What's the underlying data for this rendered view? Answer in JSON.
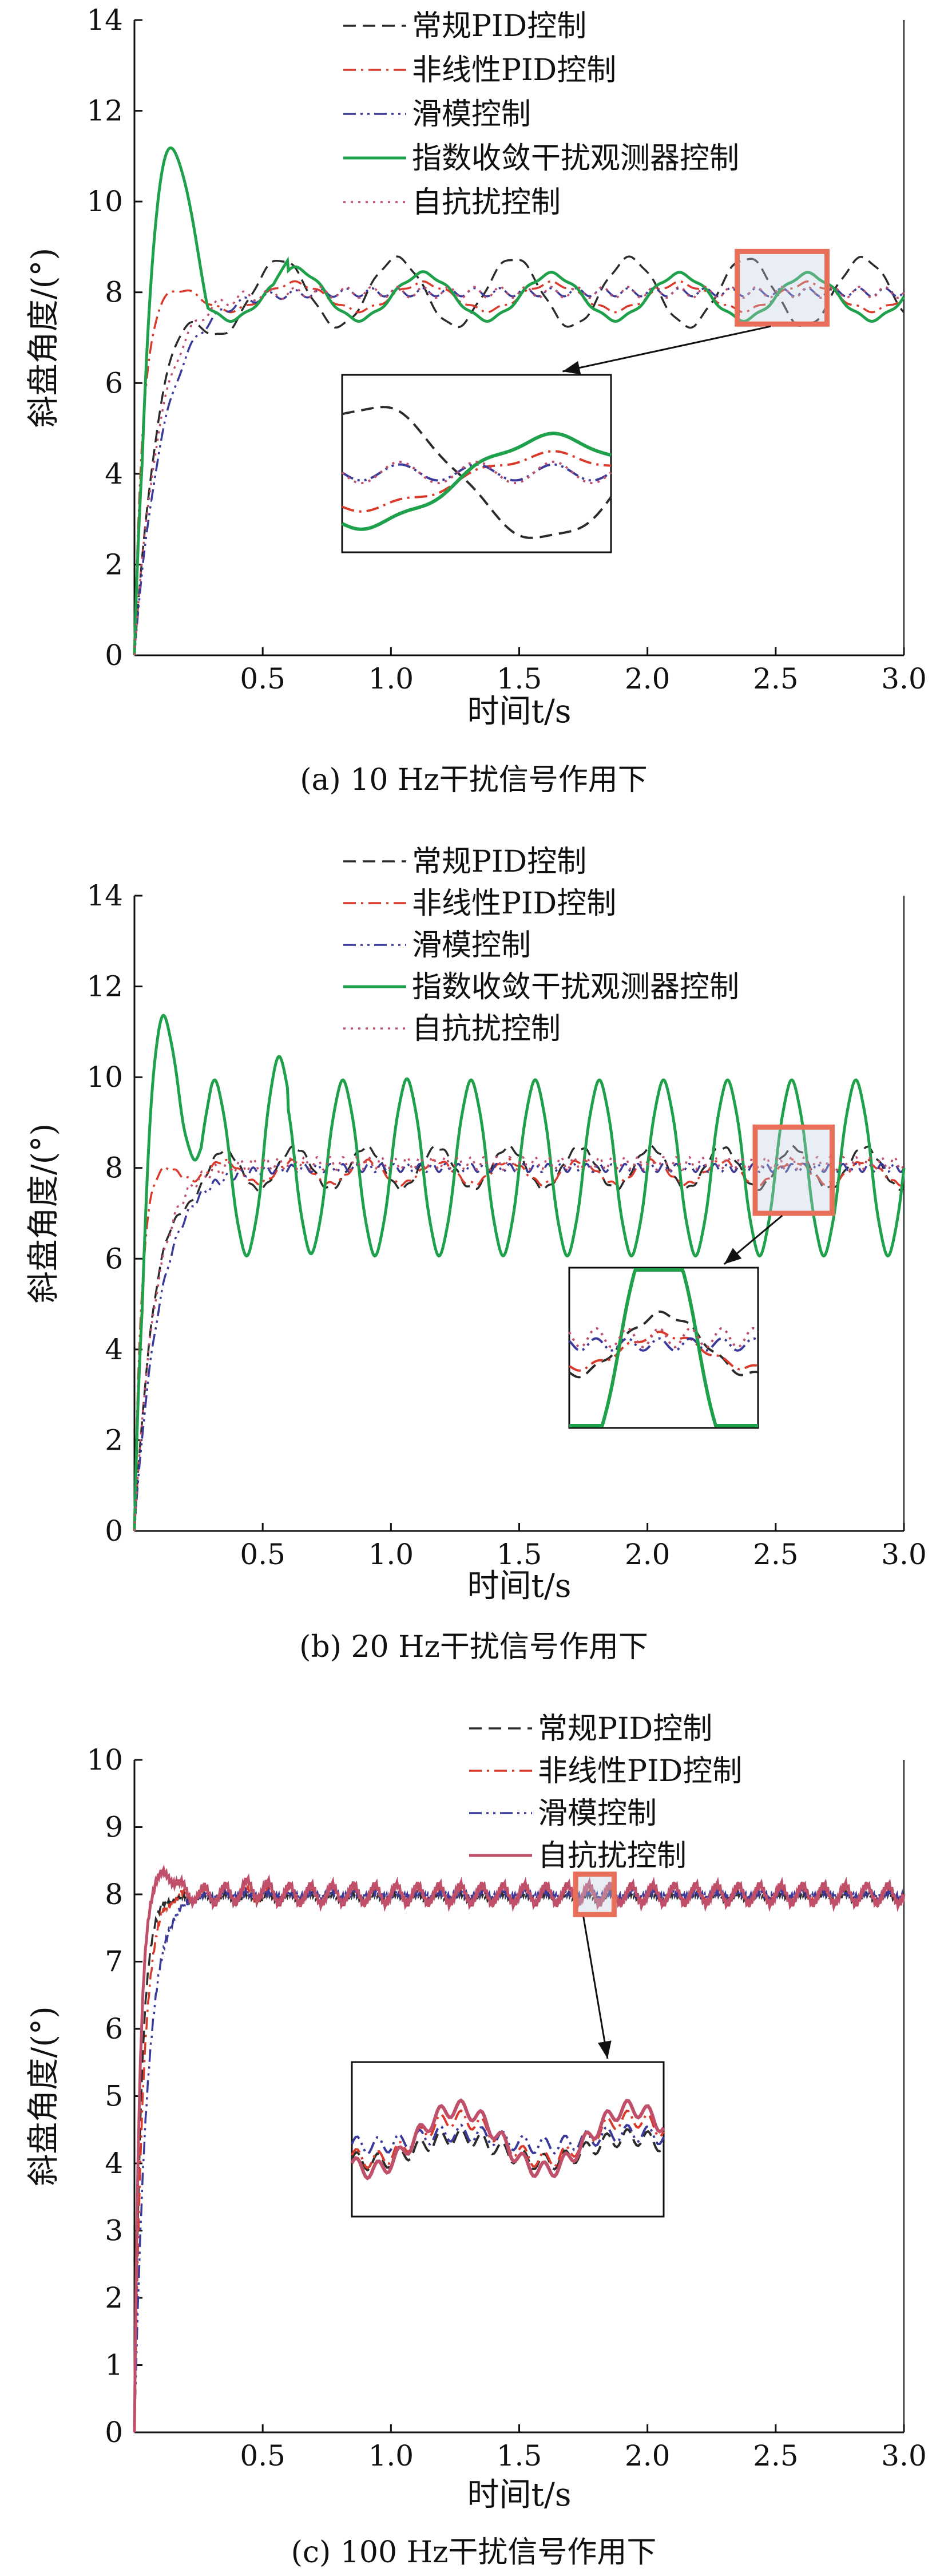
{
  "colors": {
    "常规PID控制": "#2b2b2b",
    "非线性PID控制": "#d93a2b",
    "滑模控制": "#3a3a9a",
    "指数收敛干扰观测器控制": "#1fa04a",
    "自抗扰控制": "#c0506a",
    "highlight": "#e8705a"
  },
  "chart_data": [
    {
      "type": "line",
      "caption": "(a)  10 Hz干扰信号作用下",
      "xlabel": "时间t/s",
      "ylabel": "斜盘角度/(°)",
      "xlim": [
        0,
        3.0
      ],
      "ylim": [
        0,
        14
      ],
      "xticks": [
        "0.5",
        "1.0",
        "1.5",
        "2.0",
        "2.5",
        "3.0"
      ],
      "yticks": [
        "0",
        "2",
        "4",
        "6",
        "8",
        "10",
        "12",
        "14"
      ],
      "disturbance_hz": 10,
      "legend": [
        "常规PID控制",
        "非线性PID控制",
        "滑模控制",
        "指数收敛干扰观测器控制",
        "自抗扰控制"
      ],
      "highlight_t": [
        2.35,
        2.7
      ],
      "highlight_y": [
        7.3,
        8.9
      ],
      "series": [
        {
          "name": "常规PID控制",
          "style": "dash",
          "rise": 0.3,
          "settle": 8.0,
          "osc_amp": 0.75,
          "osc_freq": 2.2,
          "overshoot": 0.3
        },
        {
          "name": "非线性PID控制",
          "style": "dashdot",
          "rise": 0.1,
          "settle": 7.9,
          "osc_amp": 0.3,
          "osc_freq": 2.0,
          "overshoot": 0.1
        },
        {
          "name": "滑模控制",
          "style": "dashdotdot",
          "rise": 0.35,
          "settle": 8.0,
          "osc_amp": 0.05,
          "osc_freq": 10,
          "overshoot": 0.0
        },
        {
          "name": "指数收敛干扰观测器控制",
          "style": "solid",
          "rise": 0.12,
          "settle": 7.9,
          "osc_amp": 0.5,
          "osc_freq": 2.0,
          "overshoot": 5.2
        },
        {
          "name": "自抗扰控制",
          "style": "dot",
          "rise": 0.3,
          "settle": 8.0,
          "osc_amp": 0.08,
          "osc_freq": 10,
          "overshoot": 0.1
        }
      ]
    },
    {
      "type": "line",
      "caption": "(b)  20 Hz干扰信号作用下",
      "xlabel": "时间t/s",
      "ylabel": "斜盘角度/(°)",
      "xlim": [
        0,
        3.0
      ],
      "ylim": [
        0,
        14
      ],
      "xticks": [
        "0.5",
        "1.0",
        "1.5",
        "2.0",
        "2.5",
        "3.0"
      ],
      "yticks": [
        "0",
        "2",
        "4",
        "6",
        "8",
        "10",
        "12",
        "14"
      ],
      "disturbance_hz": 20,
      "legend": [
        "常规PID控制",
        "非线性PID控制",
        "滑模控制",
        "指数收敛干扰观测器控制",
        "自抗扰控制"
      ],
      "highlight_t": [
        2.42,
        2.72
      ],
      "highlight_y": [
        7.0,
        8.9
      ],
      "series": [
        {
          "name": "常规PID控制",
          "style": "dash",
          "rise": 0.25,
          "settle": 8.0,
          "osc_amp": 0.45,
          "osc_freq": 3.6,
          "overshoot": 0.3
        },
        {
          "name": "非线性PID控制",
          "style": "dashdot",
          "rise": 0.08,
          "settle": 7.9,
          "osc_amp": 0.25,
          "osc_freq": 3.6,
          "overshoot": 0.2
        },
        {
          "name": "滑模控制",
          "style": "dashdotdot",
          "rise": 0.3,
          "settle": 8.0,
          "osc_amp": 0.05,
          "osc_freq": 20,
          "overshoot": 0.0
        },
        {
          "name": "指数收敛干扰观测器控制",
          "style": "solid",
          "rise": 0.1,
          "settle": 8.0,
          "osc_amp": 1.9,
          "osc_freq": 4.0,
          "overshoot": 5.2
        },
        {
          "name": "自抗扰控制",
          "style": "dot",
          "rise": 0.25,
          "settle": 8.1,
          "osc_amp": 0.1,
          "osc_freq": 20,
          "overshoot": 0.1
        }
      ]
    },
    {
      "type": "line",
      "caption": "(c)  100 Hz干扰信号作用下",
      "xlabel": "时间t/s",
      "ylabel": "斜盘角度/(°)",
      "xlim": [
        0,
        3.0
      ],
      "ylim": [
        0,
        10
      ],
      "xticks": [
        "0.5",
        "1.0",
        "1.5",
        "2.0",
        "2.5",
        "3.0"
      ],
      "yticks": [
        "0",
        "1",
        "2",
        "3",
        "4",
        "5",
        "6",
        "7",
        "8",
        "9",
        "10"
      ],
      "disturbance_hz": 100,
      "legend": [
        "常规PID控制",
        "非线性PID控制",
        "滑模控制",
        "自抗扰控制"
      ],
      "highlight_t": [
        1.72,
        1.87
      ],
      "highlight_y": [
        7.7,
        8.3
      ],
      "series": [
        {
          "name": "常规PID控制",
          "style": "dash",
          "rise": 0.08,
          "settle": 7.95,
          "osc_amp": 0.06,
          "osc_freq": 12,
          "overshoot": 0.0
        },
        {
          "name": "非线性PID控制",
          "style": "dashdot",
          "rise": 0.1,
          "settle": 8.0,
          "osc_amp": 0.1,
          "osc_freq": 12,
          "overshoot": 0.0
        },
        {
          "name": "滑模控制",
          "style": "dashdotdot",
          "rise": 0.15,
          "settle": 8.0,
          "osc_amp": 0.03,
          "osc_freq": 12,
          "overshoot": 0.0
        },
        {
          "name": "自抗扰控制",
          "style": "solid",
          "rise": 0.06,
          "settle": 8.0,
          "osc_amp": 0.15,
          "osc_freq": 12,
          "overshoot": 0.45
        }
      ]
    }
  ]
}
